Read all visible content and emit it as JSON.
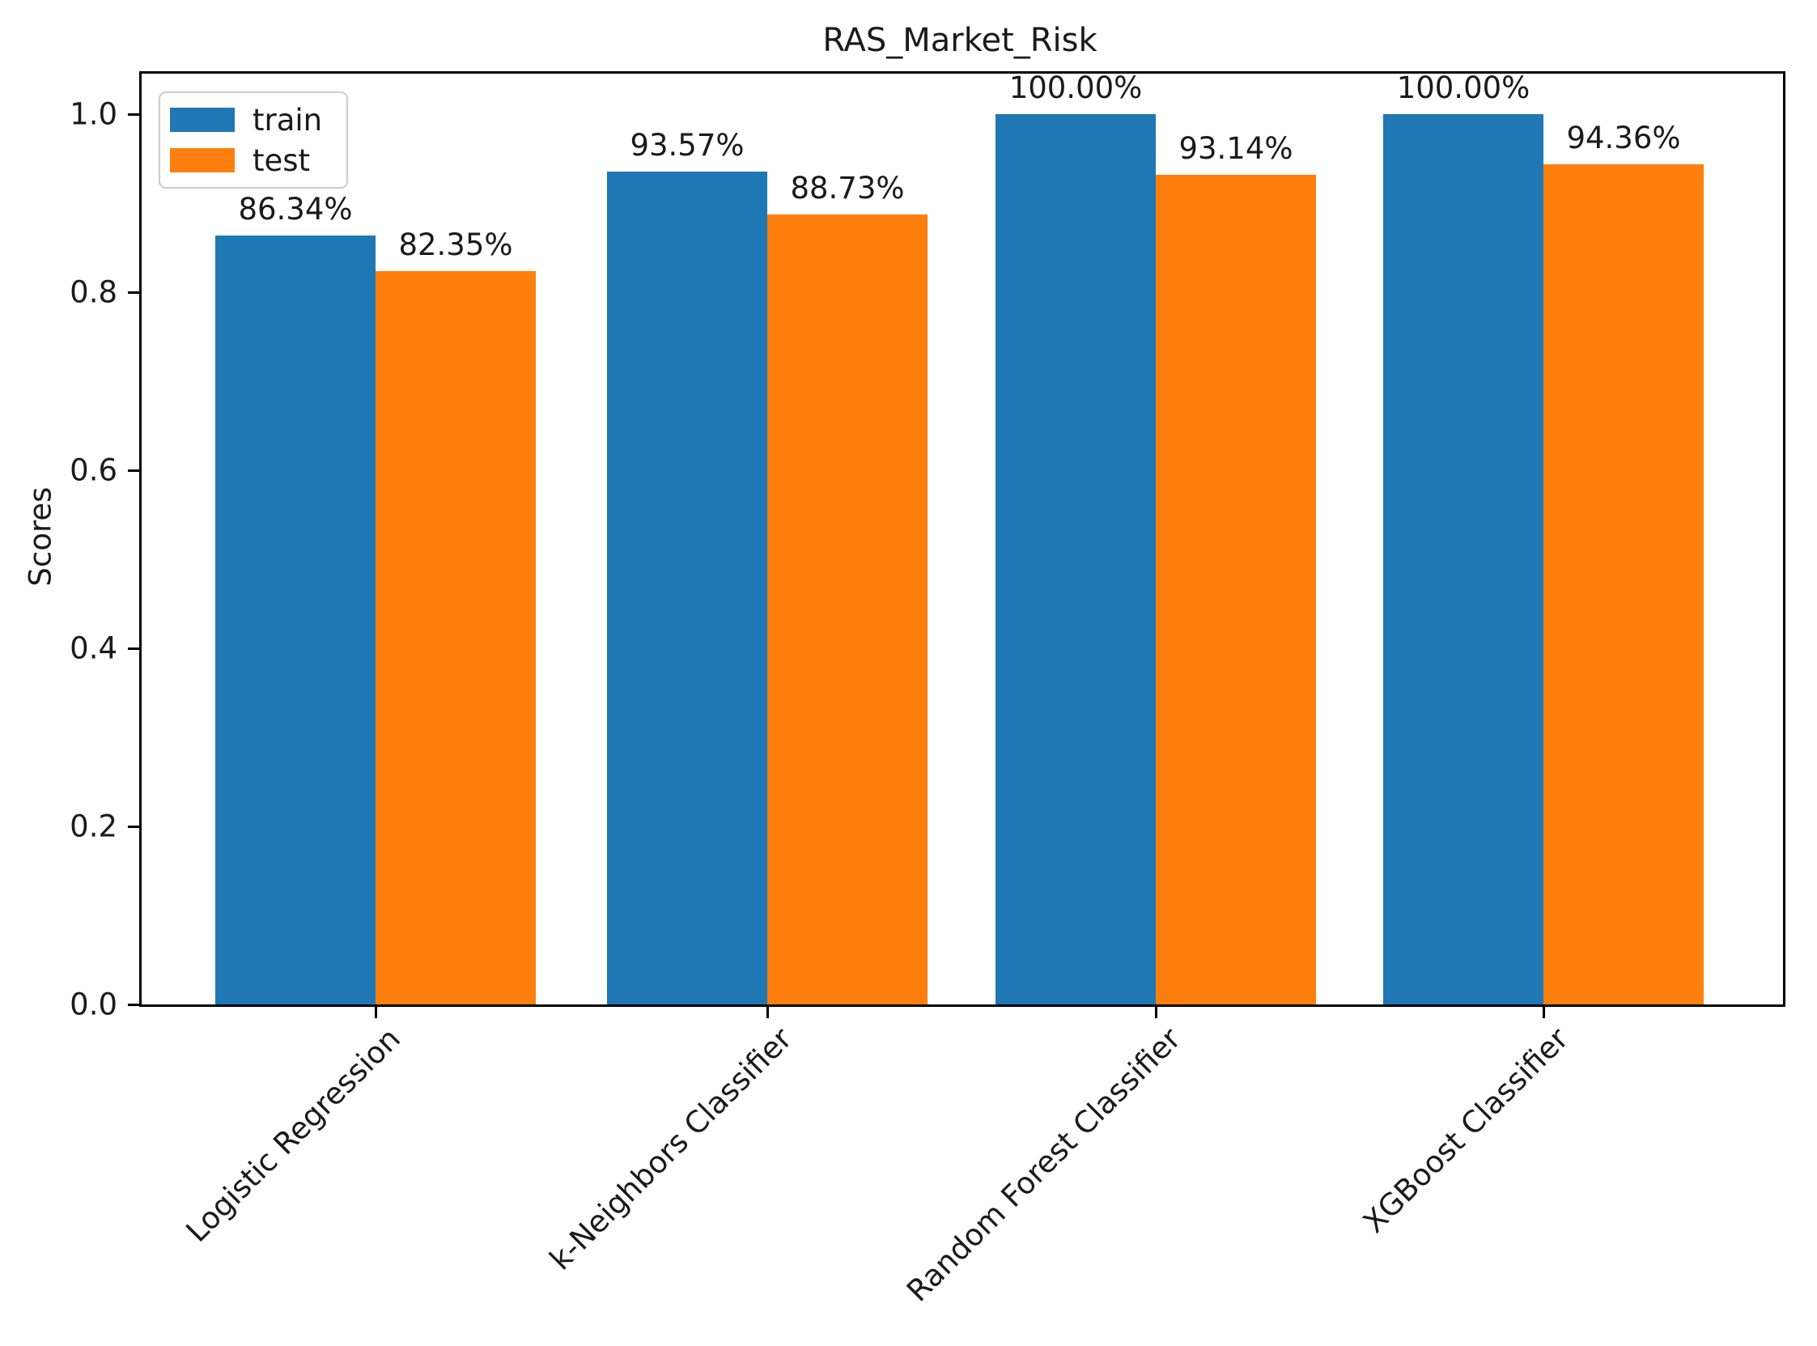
{
  "chart_data": {
    "type": "bar",
    "title": "RAS_Market_Risk",
    "xlabel": "",
    "ylabel": "Scores",
    "categories": [
      "Logistic Regression",
      "k-Neighbors Classifier",
      "Random Forest Classifier",
      "XGBoost Classifier"
    ],
    "series": [
      {
        "name": "train",
        "color": "#1f77b4",
        "values": [
          0.8634,
          0.9357,
          1.0,
          1.0
        ],
        "labels": [
          "86.34%",
          "93.57%",
          "100.00%",
          "100.00%"
        ]
      },
      {
        "name": "test",
        "color": "#ff7f0e",
        "values": [
          0.8235,
          0.8873,
          0.9314,
          0.9436
        ],
        "labels": [
          "82.35%",
          "88.73%",
          "93.14%",
          "94.36%"
        ]
      }
    ],
    "yticks": [
      "0.0",
      "0.2",
      "0.4",
      "0.6",
      "0.8",
      "1.0"
    ],
    "ylim": [
      0,
      1.045
    ],
    "grid": false,
    "legend_position": "upper left"
  }
}
